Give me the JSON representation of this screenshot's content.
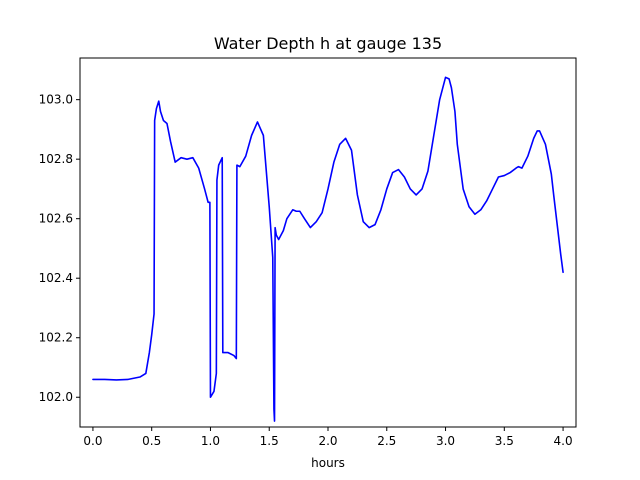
{
  "chart_data": {
    "type": "line",
    "title": "Water Depth h at gauge 135",
    "xlabel": "hours",
    "ylabel": "",
    "xlim": [
      -0.11,
      4.11
    ],
    "ylim": [
      101.9,
      103.14
    ],
    "xticks": [
      0.0,
      0.5,
      1.0,
      1.5,
      2.0,
      2.5,
      3.0,
      3.5,
      4.0
    ],
    "xtick_labels": [
      "0.0",
      "0.5",
      "1.0",
      "1.5",
      "2.0",
      "2.5",
      "3.0",
      "3.5",
      "4.0"
    ],
    "yticks": [
      102.0,
      102.2,
      102.4,
      102.6,
      102.8,
      103.0
    ],
    "ytick_labels": [
      "102.0",
      "102.2",
      "102.4",
      "102.6",
      "102.8",
      "103.0"
    ],
    "grid": false,
    "series": [
      {
        "name": "",
        "color": "#0000ff",
        "x": [
          0.0,
          0.1,
          0.2,
          0.3,
          0.4,
          0.45,
          0.48,
          0.5,
          0.52,
          0.525,
          0.54,
          0.56,
          0.575,
          0.6,
          0.63,
          0.66,
          0.7,
          0.75,
          0.8,
          0.85,
          0.9,
          0.95,
          0.98,
          0.995,
          1.0,
          1.03,
          1.05,
          1.055,
          1.07,
          1.1,
          1.105,
          1.15,
          1.2,
          1.22,
          1.225,
          1.25,
          1.3,
          1.35,
          1.4,
          1.45,
          1.5,
          1.53,
          1.54,
          1.545,
          1.55,
          1.56,
          1.58,
          1.62,
          1.65,
          1.7,
          1.73,
          1.76,
          1.8,
          1.85,
          1.9,
          1.95,
          2.0,
          2.05,
          2.1,
          2.15,
          2.2,
          2.25,
          2.3,
          2.35,
          2.4,
          2.45,
          2.5,
          2.55,
          2.6,
          2.65,
          2.7,
          2.75,
          2.8,
          2.85,
          2.9,
          2.95,
          3.0,
          3.03,
          3.05,
          3.08,
          3.1,
          3.15,
          3.2,
          3.25,
          3.3,
          3.35,
          3.4,
          3.45,
          3.5,
          3.55,
          3.6,
          3.62,
          3.65,
          3.7,
          3.75,
          3.78,
          3.8,
          3.85,
          3.9,
          3.92,
          3.95,
          3.98,
          4.0
        ],
        "y": [
          102.06,
          102.06,
          102.058,
          102.06,
          102.068,
          102.08,
          102.15,
          102.21,
          102.28,
          102.93,
          102.97,
          102.995,
          102.96,
          102.93,
          102.92,
          102.86,
          102.79,
          102.805,
          102.8,
          102.805,
          102.77,
          102.7,
          102.655,
          102.655,
          102.0,
          102.02,
          102.08,
          102.73,
          102.78,
          102.805,
          102.15,
          102.15,
          102.14,
          102.13,
          102.78,
          102.775,
          102.81,
          102.88,
          102.925,
          102.88,
          102.64,
          102.47,
          101.96,
          101.92,
          102.57,
          102.545,
          102.53,
          102.56,
          102.6,
          102.63,
          102.625,
          102.625,
          102.6,
          102.57,
          102.59,
          102.62,
          102.7,
          102.79,
          102.85,
          102.87,
          102.83,
          102.68,
          102.59,
          102.57,
          102.58,
          102.63,
          102.7,
          102.755,
          102.765,
          102.74,
          102.7,
          102.68,
          102.7,
          102.76,
          102.88,
          103.0,
          103.075,
          103.07,
          103.04,
          102.96,
          102.85,
          102.7,
          102.64,
          102.615,
          102.63,
          102.66,
          102.7,
          102.74,
          102.745,
          102.755,
          102.77,
          102.775,
          102.77,
          102.81,
          102.87,
          102.895,
          102.895,
          102.85,
          102.75,
          102.68,
          102.58,
          102.48,
          102.42
        ]
      }
    ]
  }
}
